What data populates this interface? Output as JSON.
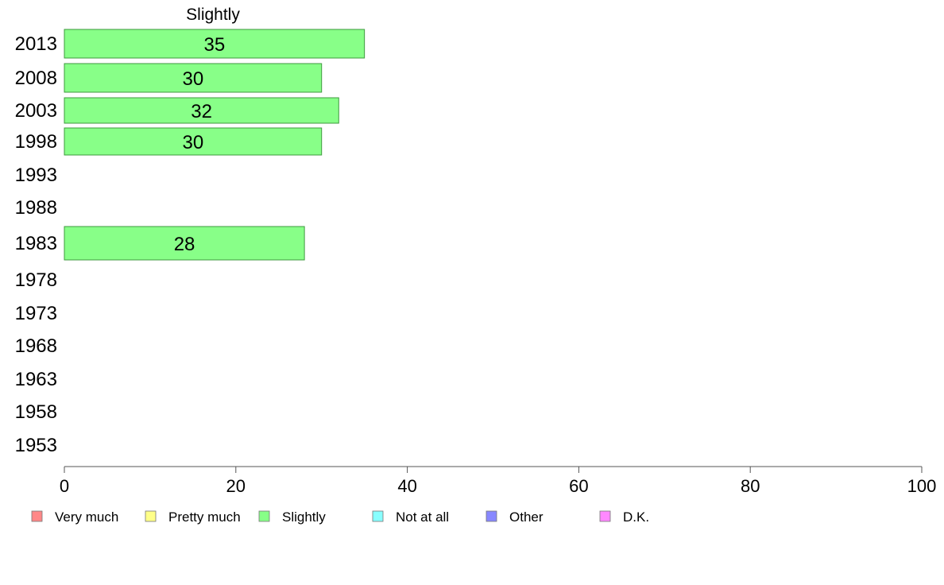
{
  "chart_data": {
    "type": "bar",
    "orientation": "horizontal",
    "title": "Slightly",
    "categories": [
      "2013",
      "2008",
      "2003",
      "1998",
      "1993",
      "1988",
      "1983",
      "1978",
      "1973",
      "1968",
      "1963",
      "1958",
      "1953"
    ],
    "series": [
      {
        "name": "Slightly",
        "color": "#88ff88",
        "values": [
          35,
          30,
          32,
          30,
          null,
          null,
          28,
          null,
          null,
          null,
          null,
          null,
          null
        ],
        "labels": [
          "35",
          "30",
          "32",
          "30",
          "",
          "",
          "28",
          "",
          "",
          "",
          "",
          "",
          ""
        ]
      }
    ],
    "xlim": [
      0,
      100
    ],
    "xticks": [
      0,
      20,
      40,
      60,
      80,
      100
    ],
    "xtick_labels": [
      "0",
      "20",
      "40",
      "60",
      "80",
      "100"
    ],
    "grid": false,
    "legend_placement": "bottom",
    "legend": [
      {
        "label": "Very much",
        "color": "#ff8888"
      },
      {
        "label": "Pretty much",
        "color": "#ffff88"
      },
      {
        "label": "Slightly",
        "color": "#88ff88"
      },
      {
        "label": "Not at all",
        "color": "#88ffff"
      },
      {
        "label": "Other",
        "color": "#8888ff"
      },
      {
        "label": "D.K.",
        "color": "#ff88ff"
      }
    ]
  }
}
